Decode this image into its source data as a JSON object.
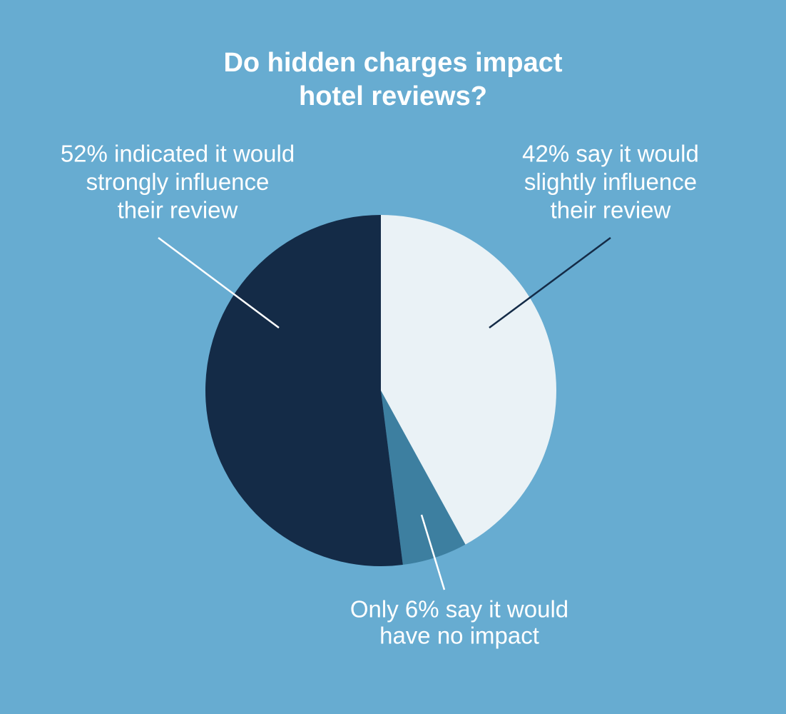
{
  "chart_data": {
    "type": "pie",
    "title": [
      "Do hidden charges impact",
      "hotel reviews?"
    ],
    "values": [
      42,
      6,
      52
    ],
    "colors": [
      "#eaf2f6",
      "#3d7fa0",
      "#142b47"
    ],
    "annotations": [
      {
        "lines": [
          "42% say it would",
          "slightly influence",
          "their review"
        ]
      },
      {
        "lines": [
          "Only 6% say it would",
          "have no impact"
        ]
      },
      {
        "lines": [
          "52% indicated it would",
          "strongly influence",
          "their review"
        ]
      }
    ]
  }
}
